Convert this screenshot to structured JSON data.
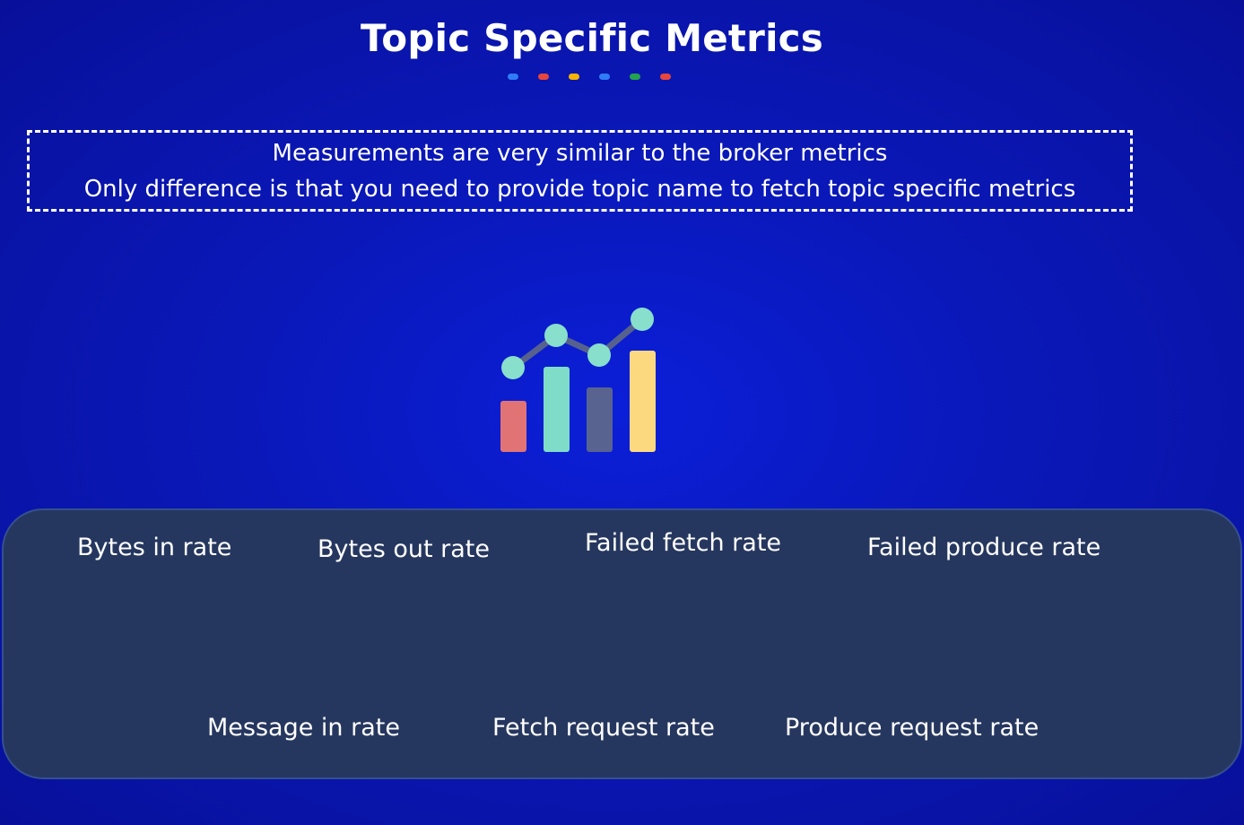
{
  "slide": {
    "title": "Topic Specific Metrics",
    "decor_dots": [
      "#2f7cf6",
      "#e8453c",
      "#f6b400",
      "#2f7cf6",
      "#23a24d",
      "#e8453c"
    ]
  },
  "note": {
    "line1": "Measurements are very similar to the broker metrics",
    "line2": "Only difference is that you need to provide topic name to fetch topic specific metrics"
  },
  "icon": {
    "name": "bar-line-chart-icon",
    "colors": {
      "bar1": "#e27375",
      "bar2": "#7fdcc8",
      "bar3": "#59638f",
      "bar4": "#fcd97f",
      "line": "#56628d",
      "points": "#88dfcb"
    }
  },
  "metrics": {
    "bytes_in": "Bytes in rate",
    "bytes_out": "Bytes out rate",
    "failed_fetch": "Failed fetch rate",
    "failed_produce": "Failed produce rate",
    "message_in": "Message in rate",
    "fetch_request": "Fetch request rate",
    "produce_request": "Produce request rate"
  }
}
